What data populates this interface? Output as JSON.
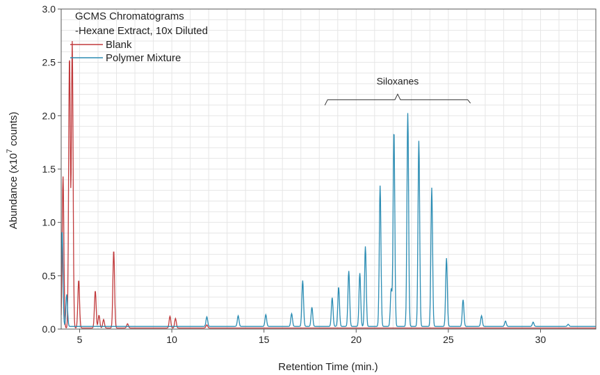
{
  "chart_data": {
    "type": "line",
    "title_lines": [
      "GCMS Chromatograms",
      "-Hexane Extract, 10x Diluted"
    ],
    "xlabel": "Retention Time (min.)",
    "ylabel_main": "Abundance (x10",
    "ylabel_sup": "7",
    "ylabel_tail": "  counts)",
    "xlim": [
      4,
      33
    ],
    "ylim": [
      0,
      3.0
    ],
    "xticks": [
      5,
      10,
      15,
      20,
      25,
      30
    ],
    "yticks": [
      0.0,
      0.5,
      1.0,
      1.5,
      2.0,
      2.5,
      3.0
    ],
    "ytick_labels": [
      "0.0",
      "0.5",
      "1.0",
      "1.5",
      "2.0",
      "2.5",
      "3.0"
    ],
    "grid": true,
    "legend_position": "top-left",
    "annotation": {
      "text": "Siloxanes",
      "x_start": 18.3,
      "x_end": 26.2,
      "y": 2.15
    },
    "series": [
      {
        "name": "Blank",
        "color": "#c0393b",
        "baseline": 0.01,
        "peaks": [
          {
            "x": 4.1,
            "y": 1.42
          },
          {
            "x": 4.45,
            "y": 2.55
          },
          {
            "x": 4.6,
            "y": 2.68
          },
          {
            "x": 4.95,
            "y": 0.45
          },
          {
            "x": 5.85,
            "y": 0.35
          },
          {
            "x": 6.05,
            "y": 0.12
          },
          {
            "x": 6.3,
            "y": 0.08
          },
          {
            "x": 6.85,
            "y": 0.73
          },
          {
            "x": 7.6,
            "y": 0.04
          },
          {
            "x": 9.9,
            "y": 0.11
          },
          {
            "x": 10.2,
            "y": 0.09
          },
          {
            "x": 11.9,
            "y": 0.03
          }
        ]
      },
      {
        "name": "Polymer Mixture",
        "color": "#2a8cb3",
        "baseline": 0.025,
        "peaks": [
          {
            "x": 4.05,
            "y": 0.9
          },
          {
            "x": 4.3,
            "y": 0.3
          },
          {
            "x": 11.9,
            "y": 0.09
          },
          {
            "x": 13.6,
            "y": 0.1
          },
          {
            "x": 15.1,
            "y": 0.11
          },
          {
            "x": 16.5,
            "y": 0.12
          },
          {
            "x": 17.1,
            "y": 0.43
          },
          {
            "x": 17.6,
            "y": 0.18
          },
          {
            "x": 18.7,
            "y": 0.27
          },
          {
            "x": 19.05,
            "y": 0.37
          },
          {
            "x": 19.6,
            "y": 0.52
          },
          {
            "x": 20.2,
            "y": 0.5
          },
          {
            "x": 20.5,
            "y": 0.75
          },
          {
            "x": 21.3,
            "y": 1.32
          },
          {
            "x": 21.9,
            "y": 0.35
          },
          {
            "x": 22.05,
            "y": 1.84
          },
          {
            "x": 22.8,
            "y": 2.0
          },
          {
            "x": 23.4,
            "y": 1.74
          },
          {
            "x": 24.1,
            "y": 1.3
          },
          {
            "x": 24.9,
            "y": 0.64
          },
          {
            "x": 25.8,
            "y": 0.25
          },
          {
            "x": 26.8,
            "y": 0.1
          },
          {
            "x": 28.1,
            "y": 0.05
          },
          {
            "x": 29.6,
            "y": 0.04
          },
          {
            "x": 31.5,
            "y": 0.02
          }
        ]
      }
    ]
  }
}
